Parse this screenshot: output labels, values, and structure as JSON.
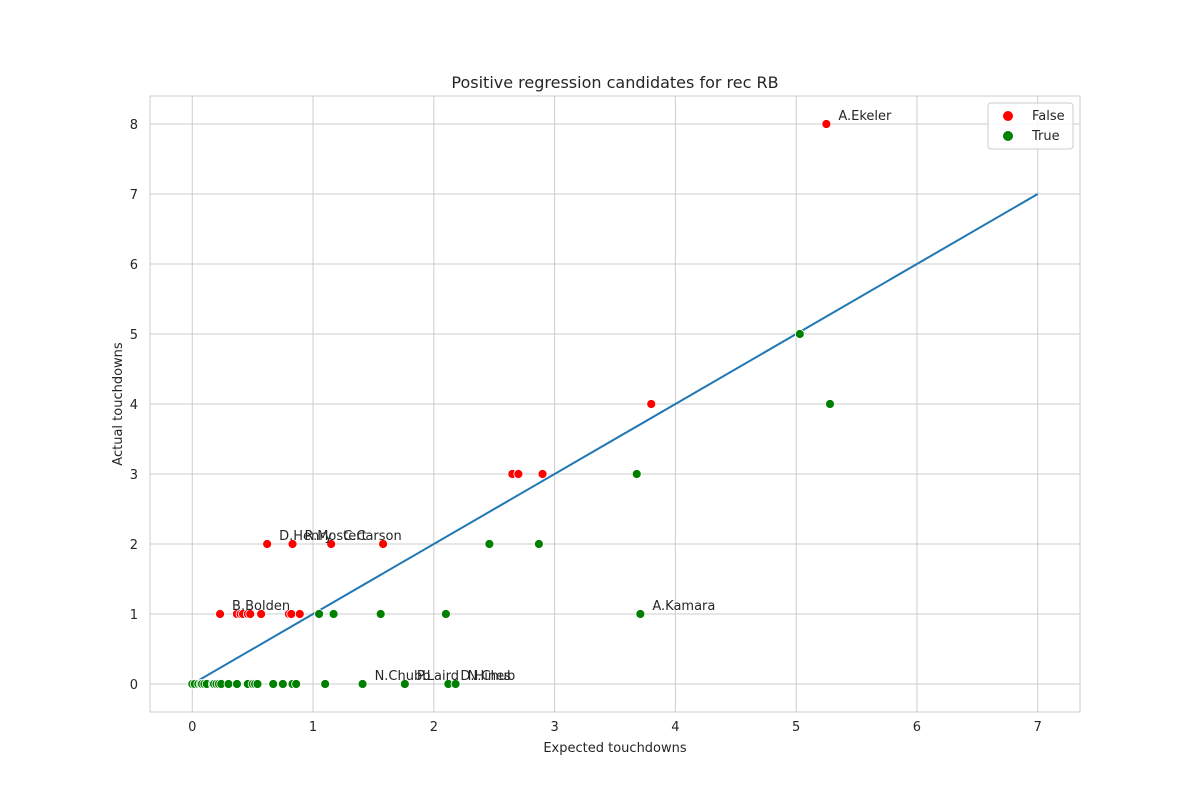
{
  "chart_data": {
    "type": "scatter",
    "title": "Positive regression candidates for rec RB",
    "xlabel": "Expected touchdowns",
    "ylabel": "Actual touchdowns",
    "xlim": [
      -0.35,
      7.35
    ],
    "ylim": [
      -0.4,
      8.4
    ],
    "xticks": [
      0,
      1,
      2,
      3,
      4,
      5,
      6,
      7
    ],
    "yticks": [
      0,
      1,
      2,
      3,
      4,
      5,
      6,
      7,
      8
    ],
    "grid": true,
    "legend_position": "top-right",
    "colors": {
      "False": "#ff0000",
      "True": "#008000",
      "reference_line": "#1f77b4",
      "grid": "#cccccc"
    },
    "series": [
      {
        "name": "False",
        "points": [
          [
            5.25,
            8
          ],
          [
            3.8,
            4
          ],
          [
            2.65,
            3
          ],
          [
            2.7,
            3
          ],
          [
            2.9,
            3
          ],
          [
            0.62,
            2
          ],
          [
            0.83,
            2
          ],
          [
            1.15,
            2
          ],
          [
            1.58,
            2
          ],
          [
            0.23,
            1
          ],
          [
            0.37,
            1
          ],
          [
            0.4,
            1
          ],
          [
            0.42,
            1
          ],
          [
            0.46,
            1
          ],
          [
            0.48,
            1
          ],
          [
            0.57,
            1
          ],
          [
            0.8,
            1
          ],
          [
            0.82,
            1
          ],
          [
            0.89,
            1
          ]
        ]
      },
      {
        "name": "True",
        "points": [
          [
            5.03,
            5
          ],
          [
            5.28,
            4
          ],
          [
            3.68,
            3
          ],
          [
            2.46,
            2
          ],
          [
            2.87,
            2
          ],
          [
            1.05,
            1
          ],
          [
            1.17,
            1
          ],
          [
            1.56,
            1
          ],
          [
            2.1,
            1
          ],
          [
            3.71,
            1
          ],
          [
            0,
            0
          ],
          [
            0.02,
            0
          ],
          [
            0.05,
            0
          ],
          [
            0.07,
            0
          ],
          [
            0.08,
            0
          ],
          [
            0.1,
            0
          ],
          [
            0.12,
            0
          ],
          [
            0.17,
            0
          ],
          [
            0.18,
            0
          ],
          [
            0.2,
            0
          ],
          [
            0.22,
            0
          ],
          [
            0.24,
            0
          ],
          [
            0.3,
            0
          ],
          [
            0.37,
            0
          ],
          [
            0.46,
            0
          ],
          [
            0.5,
            0
          ],
          [
            0.52,
            0
          ],
          [
            0.54,
            0
          ],
          [
            0.67,
            0
          ],
          [
            0.75,
            0
          ],
          [
            0.83,
            0
          ],
          [
            0.86,
            0
          ],
          [
            1.1,
            0
          ],
          [
            1.41,
            0
          ],
          [
            1.76,
            0
          ],
          [
            2.12,
            0
          ],
          [
            2.18,
            0
          ]
        ]
      }
    ],
    "reference_line": {
      "x": [
        0,
        7
      ],
      "y": [
        0,
        7
      ]
    },
    "annotations": [
      {
        "text": "A.Ekeler",
        "x": 5.25,
        "y": 8
      },
      {
        "text": "D.Henry",
        "x": 0.62,
        "y": 2
      },
      {
        "text": "R.Mostert",
        "x": 0.83,
        "y": 2
      },
      {
        "text": "C.Carson",
        "x": 1.15,
        "y": 2
      },
      {
        "text": "B.Bolden",
        "x": 0.23,
        "y": 1
      },
      {
        "text": "A.Kamara",
        "x": 3.71,
        "y": 1
      },
      {
        "text": "N.Chubb",
        "x": 1.41,
        "y": 0
      },
      {
        "text": "P.Laird",
        "x": 1.76,
        "y": 0
      },
      {
        "text": "D.Hines",
        "x": 2.12,
        "y": 0
      },
      {
        "text": "N.Chub",
        "x": 2.18,
        "y": 0
      }
    ]
  }
}
